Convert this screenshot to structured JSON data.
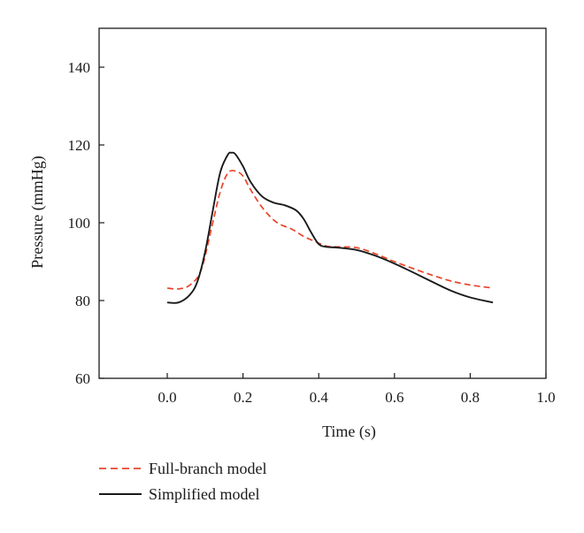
{
  "chart_data": {
    "type": "line",
    "title": "",
    "xlabel": "Time (s)",
    "ylabel": "Pressure (mmHg)",
    "xlim": [
      -0.18,
      1.0
    ],
    "ylim": [
      60,
      150
    ],
    "xticks": [
      0.0,
      0.2,
      0.4,
      0.6,
      0.8,
      1.0
    ],
    "xtick_labels": [
      "0.0",
      "0.2",
      "0.4",
      "0.6",
      "0.8",
      "1.0"
    ],
    "yticks": [
      60,
      80,
      100,
      120,
      140
    ],
    "ytick_labels": [
      "60",
      "80",
      "100",
      "120",
      "140"
    ],
    "grid": false,
    "legend_position": "bottom-left, outside plot",
    "series": [
      {
        "name": "Full-branch model",
        "color": "#e8452a",
        "dash": "dashed",
        "x": [
          0.0,
          0.03,
          0.06,
          0.09,
          0.12,
          0.14,
          0.16,
          0.18,
          0.2,
          0.22,
          0.25,
          0.28,
          0.3,
          0.33,
          0.36,
          0.39,
          0.42,
          0.45,
          0.5,
          0.55,
          0.6,
          0.65,
          0.7,
          0.75,
          0.8,
          0.86
        ],
        "y": [
          83.2,
          83.0,
          84.0,
          88.0,
          100.0,
          108.0,
          112.8,
          113.3,
          112.0,
          108.5,
          104.0,
          100.8,
          99.5,
          98.3,
          96.5,
          95.2,
          94.0,
          93.8,
          93.6,
          92.0,
          90.0,
          88.2,
          86.5,
          85.0,
          84.0,
          83.2
        ]
      },
      {
        "name": "Simplified model",
        "color": "#1a1a1a",
        "dash": "solid",
        "x": [
          0.0,
          0.03,
          0.06,
          0.08,
          0.1,
          0.12,
          0.14,
          0.16,
          0.17,
          0.18,
          0.2,
          0.22,
          0.25,
          0.28,
          0.31,
          0.34,
          0.36,
          0.38,
          0.4,
          0.42,
          0.45,
          0.5,
          0.55,
          0.6,
          0.65,
          0.7,
          0.75,
          0.8,
          0.86
        ],
        "y": [
          79.5,
          79.5,
          81.5,
          85.0,
          92.5,
          103.0,
          113.0,
          117.5,
          118.0,
          117.6,
          114.5,
          110.5,
          106.8,
          105.2,
          104.5,
          103.2,
          101.0,
          97.5,
          94.5,
          93.8,
          93.6,
          93.0,
          91.5,
          89.5,
          87.2,
          84.8,
          82.5,
          80.8,
          79.5
        ]
      }
    ]
  }
}
